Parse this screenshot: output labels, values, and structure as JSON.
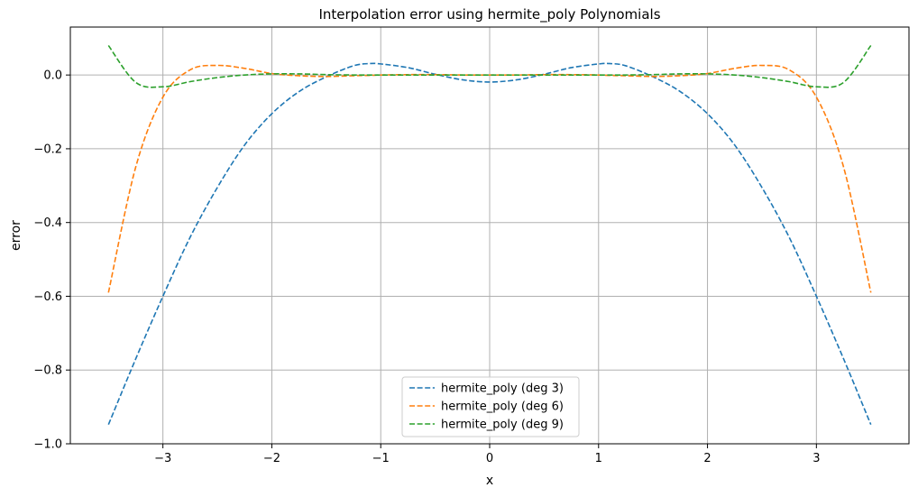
{
  "chart_data": {
    "type": "line",
    "title": "Interpolation error using hermite_poly Polynomials",
    "xlabel": "x",
    "ylabel": "error",
    "xlim": [
      -3.85,
      3.85
    ],
    "ylim": [
      -1.0,
      0.13
    ],
    "xticks": [
      -3,
      -2,
      -1,
      0,
      1,
      2,
      3
    ],
    "xtick_labels": [
      "−3",
      "−2",
      "−1",
      "0",
      "1",
      "2",
      "3"
    ],
    "yticks": [
      0.0,
      -0.2,
      -0.4,
      -0.6,
      -0.8,
      -1.0
    ],
    "ytick_labels": [
      "0.0",
      "−0.2",
      "−0.4",
      "−0.6",
      "−0.8",
      "−1.0"
    ],
    "grid": true,
    "legend_position": "lower-center",
    "line_style": "dashed",
    "x": [
      -3.5,
      -3.25,
      -3.0,
      -2.75,
      -2.5,
      -2.25,
      -2.0,
      -1.75,
      -1.5,
      -1.25,
      -1.1,
      -1.0,
      -0.75,
      -0.5,
      -0.25,
      0.0,
      0.25,
      0.5,
      0.75,
      1.0,
      1.1,
      1.25,
      1.5,
      1.75,
      2.0,
      2.25,
      2.5,
      2.75,
      3.0,
      3.25,
      3.5
    ],
    "series": [
      {
        "name": "hermite_poly (deg 3)",
        "color": "#1f77b4",
        "values": [
          -0.948,
          -0.77,
          -0.6,
          -0.44,
          -0.305,
          -0.19,
          -0.105,
          -0.045,
          -0.005,
          0.025,
          0.031,
          0.03,
          0.02,
          0.002,
          -0.013,
          -0.019,
          -0.013,
          0.002,
          0.02,
          0.03,
          0.031,
          0.025,
          -0.005,
          -0.045,
          -0.105,
          -0.19,
          -0.305,
          -0.44,
          -0.6,
          -0.77,
          -0.948
        ]
      },
      {
        "name": "hermite_poly (deg 6)",
        "color": "#ff7f0e",
        "values": [
          -0.59,
          -0.25,
          -0.06,
          0.014,
          0.026,
          0.018,
          0.004,
          -0.002,
          -0.004,
          -0.002,
          -0.001,
          0.0,
          0.001,
          0.001,
          0.0,
          0.0,
          0.0,
          0.001,
          0.001,
          0.0,
          -0.001,
          -0.002,
          -0.004,
          -0.002,
          0.004,
          0.018,
          0.026,
          0.014,
          -0.06,
          -0.25,
          -0.59
        ]
      },
      {
        "name": "hermite_poly (deg 9)",
        "color": "#2ca02c",
        "values": [
          0.08,
          -0.02,
          -0.032,
          -0.018,
          -0.007,
          0.0,
          0.003,
          0.003,
          0.001,
          0.0,
          0.0,
          0.0,
          0.0,
          0.0,
          0.0,
          0.0,
          0.0,
          0.0,
          0.0,
          0.0,
          0.0,
          0.0,
          0.001,
          0.003,
          0.003,
          0.0,
          -0.007,
          -0.018,
          -0.032,
          -0.02,
          0.08
        ]
      }
    ]
  }
}
